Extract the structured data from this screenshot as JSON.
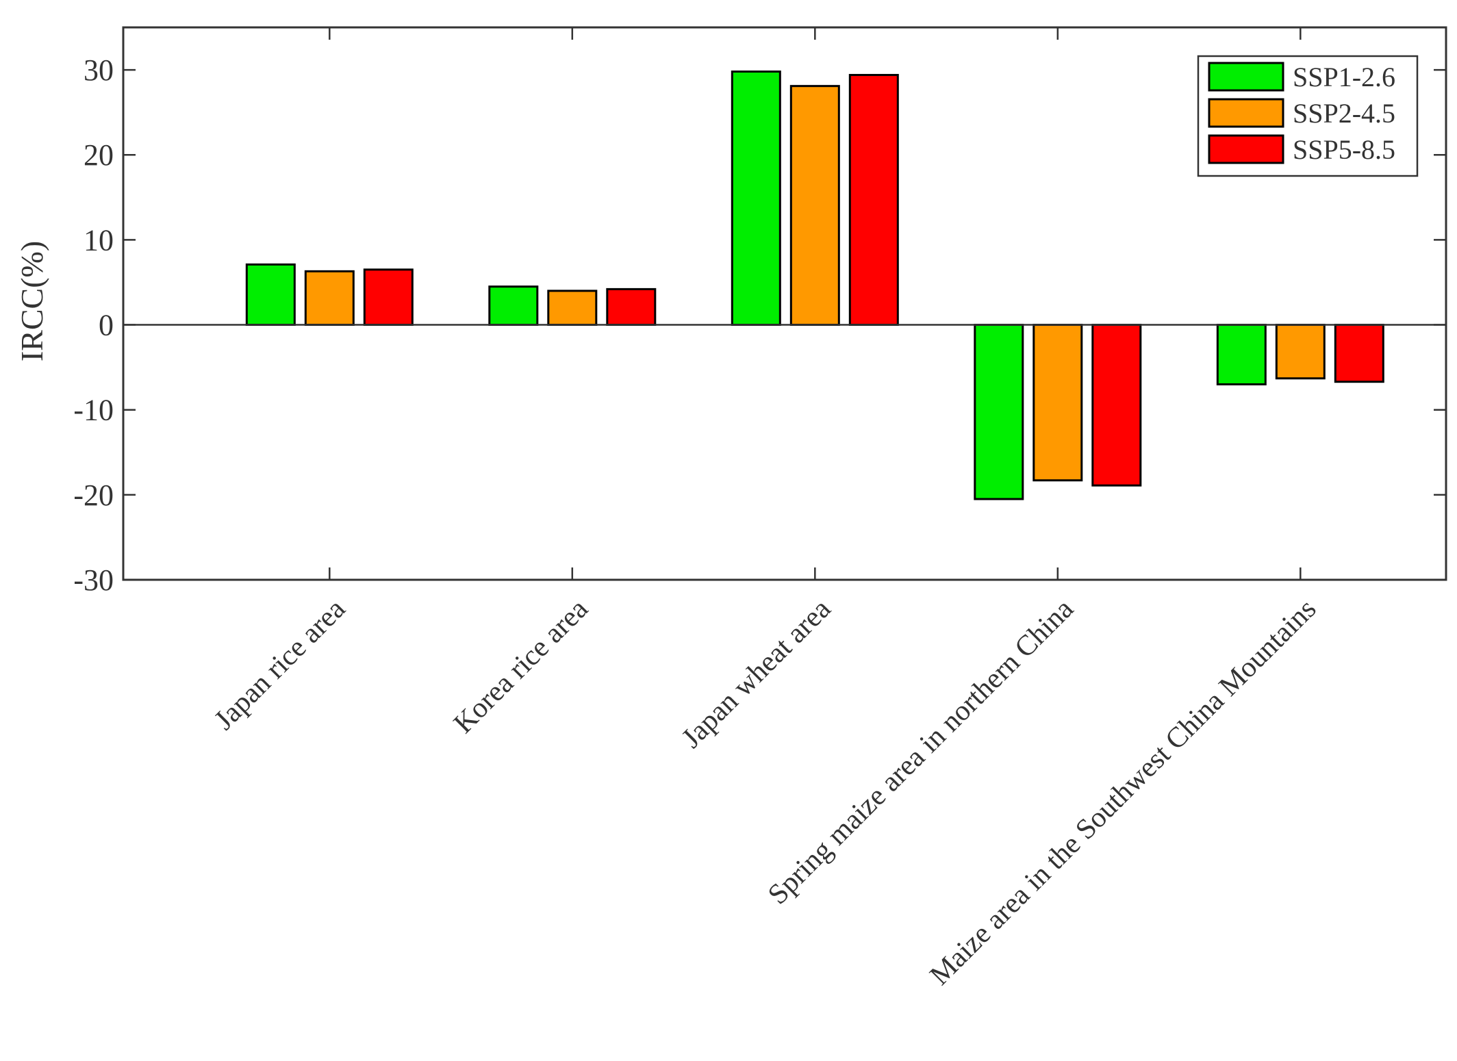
{
  "chart_data": {
    "type": "bar",
    "title": "",
    "xlabel": "",
    "ylabel": "IRCC(%)",
    "ylim": [
      -30,
      35
    ],
    "yticks": [
      30,
      20,
      10,
      0,
      -10,
      -20,
      -30
    ],
    "grid": false,
    "legend_position": "top-right",
    "categories": [
      "Japan rice area",
      "Korea rice area",
      "Japan wheat area",
      "Spring maize area in northern China",
      "Maize area in the Southwest China Mountains"
    ],
    "series": [
      {
        "name": "SSP1-2.6",
        "color": "#00ee00",
        "values": [
          7.1,
          4.5,
          29.8,
          -20.5,
          -7.0
        ]
      },
      {
        "name": "SSP2-4.5",
        "color": "#ff9900",
        "values": [
          6.3,
          4.0,
          28.1,
          -18.3,
          -6.3
        ]
      },
      {
        "name": "SSP5-8.5",
        "color": "#ff0000",
        "values": [
          6.5,
          4.2,
          29.4,
          -18.9,
          -6.7
        ]
      }
    ]
  }
}
